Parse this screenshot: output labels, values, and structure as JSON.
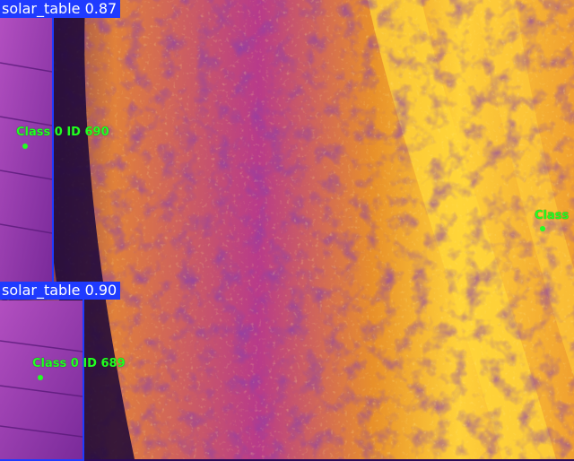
{
  "detections": [
    {
      "label": "solar_table 0.87"
    },
    {
      "label": "solar_table 0.90"
    }
  ],
  "tracks": [
    {
      "label": "Class 0 ID 690"
    },
    {
      "label": "Class 0 ID 689"
    },
    {
      "label": "Class"
    }
  ],
  "colors": {
    "box": "#1f3bff",
    "track": "#22ff22",
    "thermal_dark": "#2a0a5a",
    "thermal_mid": "#c0307a",
    "thermal_hot": "#ffc830"
  }
}
